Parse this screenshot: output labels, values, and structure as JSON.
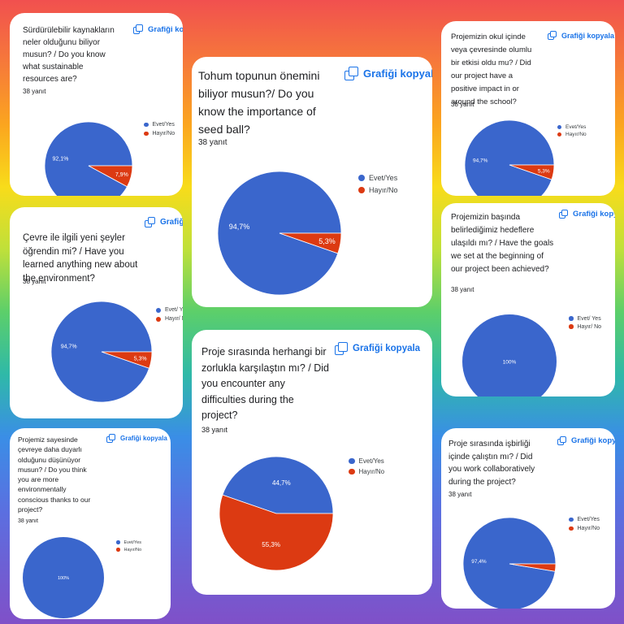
{
  "copy_label": "Grafiği kopyala",
  "colors": {
    "yes": "#3a66cc",
    "no": "#dc3a12"
  },
  "charts": [
    {
      "id": "c1",
      "title": "Sürdürülebilir kaynakların neler olduğunu biliyor musun? / Do you know what sustainable resources are?",
      "responses": "38 yanıt",
      "chart_data": {
        "type": "pie",
        "categories": [
          "Evet/Yes",
          "Hayır/No"
        ],
        "values": [
          92.1,
          7.9
        ],
        "labels": [
          "92,1%",
          "7,9%"
        ],
        "legend_placement": "right"
      }
    },
    {
      "id": "c2",
      "title": "Tohum topunun önemini biliyor musun?/ Do you know the importance of seed ball?",
      "responses": "38 yanıt",
      "chart_data": {
        "type": "pie",
        "categories": [
          "Evet/Yes",
          "Hayır/No"
        ],
        "values": [
          94.7,
          5.3
        ],
        "labels": [
          "94,7%",
          "5,3%"
        ],
        "legend_placement": "right"
      }
    },
    {
      "id": "c3",
      "title": "Projemizin okul içinde veya çevresinde olumlu bir etkisi oldu mu? / Did our project have a positive impact in or around the school?",
      "responses": "38 yanıt",
      "chart_data": {
        "type": "pie",
        "categories": [
          "Evet/Yes",
          "Hayır/No"
        ],
        "values": [
          94.7,
          5.3
        ],
        "labels": [
          "94,7%",
          "5,3%"
        ],
        "legend_placement": "right"
      }
    },
    {
      "id": "c4",
      "title": "Çevre ile ilgili yeni şeyler öğrendin mi? /  Have you learned anything new about the environment?",
      "responses": "38 yanıt",
      "chart_data": {
        "type": "pie",
        "categories": [
          "Evet/ Yes",
          "Hayır/ No"
        ],
        "values": [
          94.7,
          5.3
        ],
        "labels": [
          "94,7%",
          "5,3%"
        ],
        "legend_placement": "right"
      }
    },
    {
      "id": "c5",
      "title": "Projemizin başında belirlediğimiz hedeflere ulaşıldı mı? / Have the goals we set at the beginning of our project been achieved?",
      "responses": "38 yanıt",
      "chart_data": {
        "type": "pie",
        "categories": [
          "Evet/ Yes",
          "Hayır/ No"
        ],
        "values": [
          100,
          0
        ],
        "labels": [
          "100%",
          ""
        ],
        "legend_placement": "right"
      }
    },
    {
      "id": "c6",
      "title": "Proje sırasında herhangi bir zorlukla karşılaştın mı? / Did you encounter any difficulties during the project?",
      "responses": "38 yanıt",
      "chart_data": {
        "type": "pie",
        "categories": [
          "Evet/Yes",
          "Hayır/No"
        ],
        "values": [
          44.7,
          55.3
        ],
        "labels": [
          "44,7%",
          "55,3%"
        ],
        "legend_placement": "right"
      }
    },
    {
      "id": "c7",
      "title": "Projemiz sayesinde çevreye daha duyarlı olduğunu düşünüyor musun? / Do you think you are more environmentally conscious thanks to our project?",
      "responses": "38 yanıt",
      "chart_data": {
        "type": "pie",
        "categories": [
          "Evet/Yes",
          "Hayır/No"
        ],
        "values": [
          100,
          0
        ],
        "labels": [
          "100%",
          ""
        ],
        "legend_placement": "right"
      }
    },
    {
      "id": "c8",
      "title": "Proje sırasında işbirliği içinde çalıştın mı? / Did you work collaboratively during the project?",
      "responses": "38 yanıt",
      "chart_data": {
        "type": "pie",
        "categories": [
          "Evet/Yes",
          "Hayır/No"
        ],
        "values": [
          97.4,
          2.6
        ],
        "labels": [
          "97,4%",
          ""
        ],
        "legend_placement": "right"
      }
    }
  ]
}
